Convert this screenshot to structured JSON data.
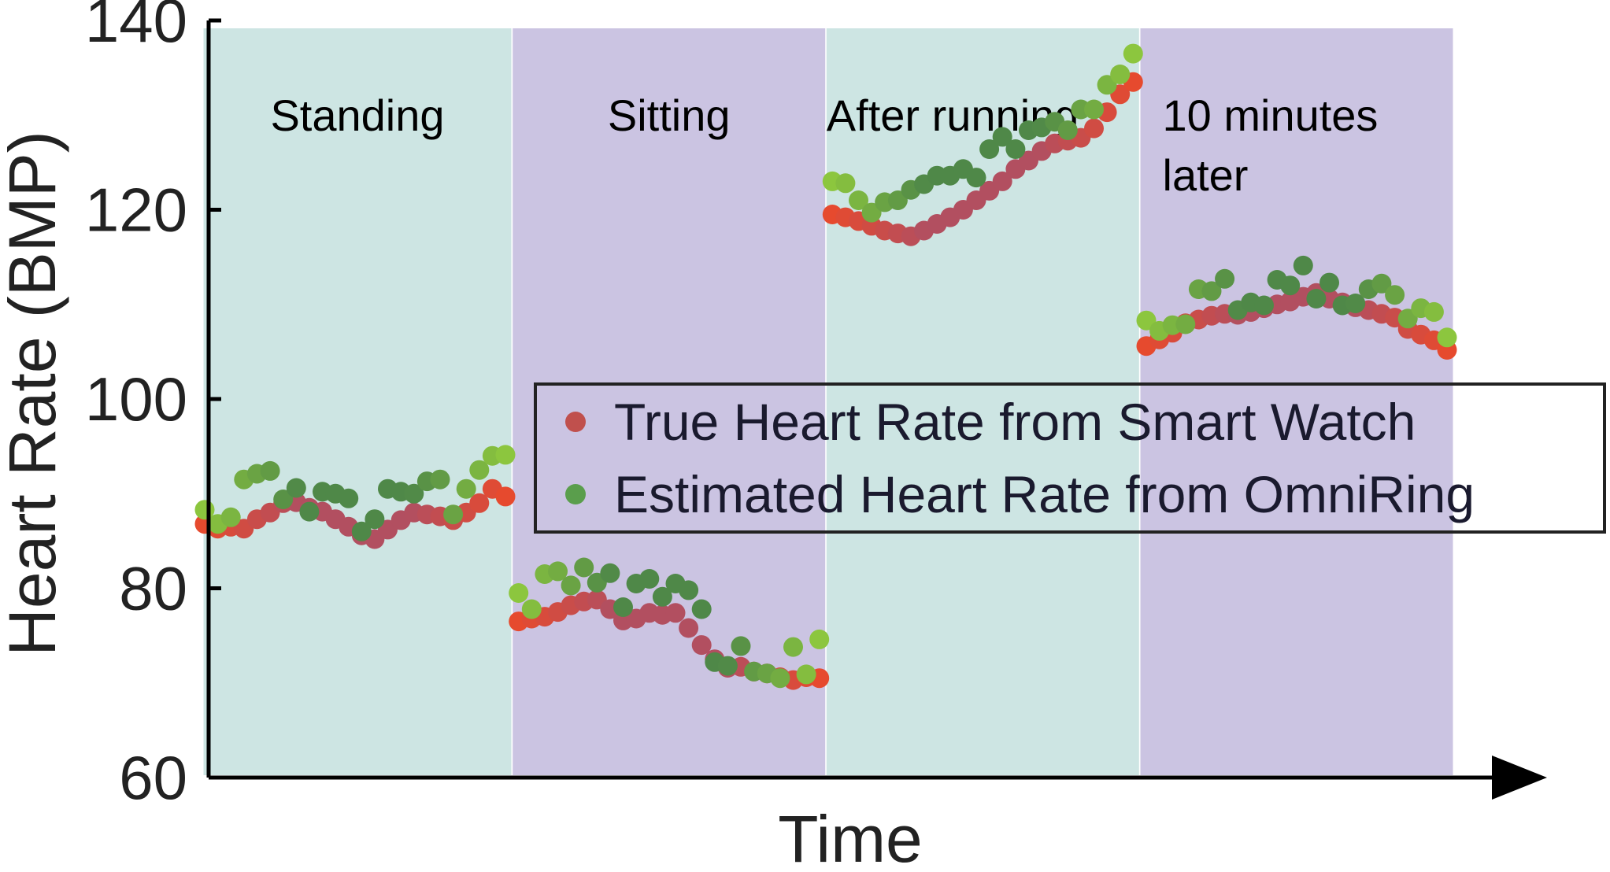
{
  "chart_data": {
    "type": "scatter",
    "title": "",
    "xlabel": "Time",
    "ylabel": "Heart Rate (BMP)",
    "ylim": [
      60,
      140
    ],
    "yticks": [
      60,
      80,
      100,
      120,
      140
    ],
    "xticks": [],
    "grid": false,
    "legend_position": "center-right",
    "colors": {
      "band_teal": "#cde5e3",
      "band_purple": "#cbc4e2"
    },
    "phases": [
      {
        "label": "Standing",
        "color": "#cde5e3",
        "x_start": 0,
        "x_end": 23
      },
      {
        "label": "Sitting",
        "color": "#cbc4e2",
        "x_start": 24,
        "x_end": 47
      },
      {
        "label": "After running",
        "color": "#cde5e3",
        "x_start": 48,
        "x_end": 71
      },
      {
        "label": "10 minutes\nlater",
        "color": "#cbc4e2",
        "x_start": 72,
        "x_end": 95
      }
    ],
    "series": [
      {
        "name": "True Heart Rate from Smart Watch",
        "legend_color": "#c0504d",
        "color_start": "#e64a2e",
        "color_end": "#b24f60",
        "values": [
          86.8,
          86.3,
          86.5,
          86.3,
          87.3,
          88.0,
          89.0,
          89.1,
          88.5,
          88.1,
          87.3,
          86.5,
          85.6,
          85.2,
          86.2,
          87.2,
          88.0,
          87.8,
          87.6,
          87.2,
          88.0,
          89.0,
          90.5,
          89.7,
          76.5,
          76.8,
          77.0,
          77.5,
          78.2,
          78.6,
          78.8,
          77.8,
          76.6,
          76.8,
          77.4,
          77.2,
          77.4,
          75.8,
          74.0,
          72.5,
          71.6,
          71.7,
          71.2,
          71.0,
          70.6,
          70.3,
          70.6,
          70.5,
          119.5,
          119.2,
          118.8,
          118.3,
          117.8,
          117.5,
          117.2,
          117.8,
          118.5,
          119.2,
          120.0,
          121.0,
          122.0,
          123.0,
          124.3,
          125.2,
          126.2,
          127.0,
          127.3,
          127.6,
          128.6,
          130.3,
          132.2,
          133.5,
          105.6,
          106.3,
          107.0,
          108.0,
          108.4,
          108.8,
          109.0,
          108.9,
          109.2,
          109.6,
          110.0,
          110.3,
          110.8,
          111.2,
          110.6,
          110.2,
          109.7,
          109.4,
          109.0,
          108.6,
          107.4,
          106.8,
          106.2,
          105.2
        ]
      },
      {
        "name": "Estimated Heart Rate from OmniRing",
        "legend_color": "#5a9e4c",
        "color_start": "#8cc63e",
        "color_end": "#4f8848",
        "values": [
          88.3,
          86.8,
          87.5,
          91.5,
          92.1,
          92.4,
          89.4,
          90.6,
          88.1,
          90.2,
          90.0,
          89.5,
          86.0,
          87.3,
          90.5,
          90.2,
          90.0,
          91.3,
          91.5,
          87.8,
          90.5,
          92.5,
          94.0,
          94.1,
          79.5,
          77.8,
          81.5,
          81.8,
          80.3,
          82.2,
          80.6,
          81.6,
          78.0,
          80.5,
          81.0,
          79.1,
          80.5,
          79.8,
          77.8,
          72.2,
          71.8,
          73.9,
          71.2,
          71.0,
          70.5,
          73.8,
          70.9,
          74.6,
          123.0,
          122.8,
          121.0,
          119.7,
          120.8,
          121.0,
          122.1,
          122.7,
          123.6,
          123.6,
          124.3,
          123.4,
          126.4,
          127.7,
          126.4,
          128.4,
          128.7,
          129.3,
          128.4,
          130.6,
          130.6,
          133.2,
          134.3,
          136.5,
          108.3,
          107.2,
          107.8,
          107.9,
          111.6,
          111.4,
          112.7,
          109.4,
          110.2,
          109.9,
          112.6,
          112.0,
          114.1,
          110.6,
          112.3,
          109.9,
          110.1,
          111.6,
          112.2,
          111.0,
          108.5,
          109.6,
          109.2,
          106.5
        ]
      }
    ]
  }
}
